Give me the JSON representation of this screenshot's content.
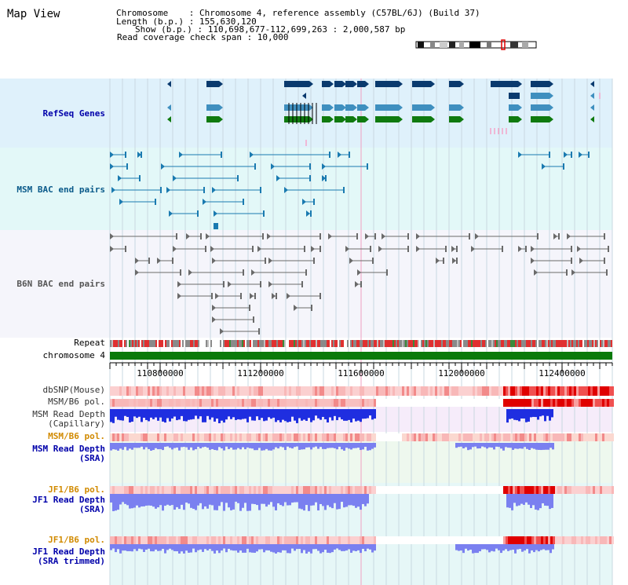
{
  "window": {
    "title": "Map View"
  },
  "header": {
    "chromosome_line": "Chromosome    : Chromosome 4, reference assembly (C57BL/6J) (Build 37)",
    "length_line": "Length (b.p.) : 155,630,120",
    "show_line": "Show (b.p.) : 110,698,677-112,699,263 : 2,000,587 bp",
    "coverage_line": "Read coverage check span : 10,000"
  },
  "colors": {
    "refseq_bg": "#dff1fb",
    "bac_bg": "#e3f8f8",
    "b6n_bg": "#f4f4fb",
    "depth_bg": "#f4ecfa",
    "sra_bg": "#eef8ee",
    "gene_dark": "#0a3a6e",
    "gene_mid": "#3f8fbf",
    "gene_green": "#0f7a0f",
    "bac_teal": "#1a7ab0",
    "b6n_gray": "#6a6a6a",
    "depth_blue": "#1f2ee0",
    "depth_light": "#7a80f0",
    "snp_red": "#f06060",
    "chrom_green": "#0a7a0a"
  },
  "tracks": [
    {
      "id": "refseq",
      "label": "RefSeq Genes",
      "color": "#0000aa"
    },
    {
      "id": "msm_bac",
      "label": "MSM BAC end pairs",
      "color": "#0a5a8a"
    },
    {
      "id": "b6n_bac",
      "label": "B6N BAC end pairs",
      "color": "#555555"
    },
    {
      "id": "repeat",
      "label": "Repeat",
      "color": "#000000"
    },
    {
      "id": "chromosome",
      "label": "chromosome 4",
      "color": "#000000"
    },
    {
      "id": "dbsnp",
      "label": "dbSNP(Mouse)",
      "color": "#333333"
    },
    {
      "id": "msm_b6_pol_1",
      "label": "MSM/B6 pol.",
      "color": "#333333"
    },
    {
      "id": "msm_depth_cap",
      "label": "MSM Read Depth\n(Capillary)",
      "color": "#333333"
    },
    {
      "id": "msm_b6_pol_2",
      "label": "MSM/B6 pol.",
      "color": "#d18a00"
    },
    {
      "id": "msm_depth_sra",
      "label": "MSM Read Depth\n(SRA)",
      "color": "#0000aa"
    },
    {
      "id": "jf1_b6_pol_1",
      "label": "JF1/B6 pol.",
      "color": "#d18a00"
    },
    {
      "id": "jf1_depth_sra",
      "label": "JF1 Read Depth\n(SRA)",
      "color": "#0000aa"
    },
    {
      "id": "jf1_b6_pol_2",
      "label": "JF1/B6 pol.",
      "color": "#d18a00"
    },
    {
      "id": "jf1_depth_trim",
      "label": "JF1 Read Depth\n(SRA trimmed)",
      "color": "#0000aa"
    }
  ],
  "axis": {
    "ticks": [
      "110800000",
      "111200000",
      "111600000",
      "112000000",
      "112400000"
    ]
  }
}
